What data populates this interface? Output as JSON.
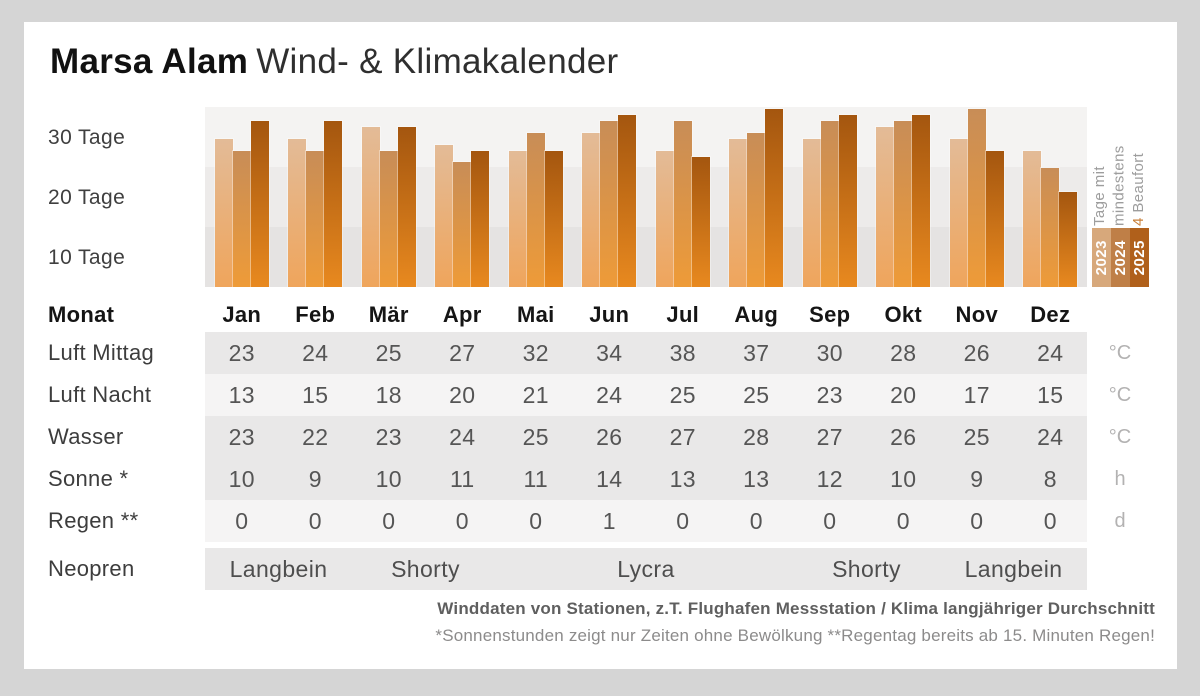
{
  "header": {
    "brand": "Marsa Alam",
    "subtitle": "Wind- & Klimakalender"
  },
  "chart_data": {
    "type": "bar",
    "title": "Tage mit mindestens 4 Beaufort",
    "categories": [
      "Jan",
      "Feb",
      "Mär",
      "Apr",
      "Mai",
      "Jun",
      "Jul",
      "Aug",
      "Sep",
      "Okt",
      "Nov",
      "Dez"
    ],
    "series": [
      {
        "name": "2023",
        "values": [
          25,
          25,
          27,
          24,
          23,
          26,
          23,
          25,
          25,
          27,
          25,
          23
        ]
      },
      {
        "name": "2024",
        "values": [
          23,
          23,
          23,
          21,
          26,
          28,
          28,
          26,
          28,
          28,
          30,
          20
        ]
      },
      {
        "name": "2025",
        "values": [
          28,
          28,
          27,
          23,
          23,
          29,
          22,
          30,
          29,
          29,
          23,
          16
        ]
      }
    ],
    "yticks": [
      {
        "label": "30 Tage",
        "value": 30
      },
      {
        "label": "20 Tage",
        "value": 20
      },
      {
        "label": "10 Tage",
        "value": 10
      }
    ],
    "ylim": [
      0,
      30
    ],
    "grid": "banded",
    "legend_position": "right",
    "legend": {
      "line1": "Tage mit",
      "line2": "mindestens",
      "line3_highlight": "4",
      "line3_rest": " Beaufort"
    }
  },
  "colors": {
    "bar_2023_top": "#e3bb97",
    "bar_2023_bottom": "#efa55c",
    "bar_2024_top": "#c88d57",
    "bar_2024_bottom": "#ee9b38",
    "bar_2025_top": "#a4560f",
    "bar_2025_bottom": "#e8891f",
    "chip_2023": "#d7a87b",
    "chip_2024": "#bf7f47",
    "chip_2025": "#b0601b",
    "accent_orange": "#c97e35"
  },
  "table": {
    "month_header_label": "Monat",
    "months": [
      "Jan",
      "Feb",
      "Mär",
      "Apr",
      "Mai",
      "Jun",
      "Jul",
      "Aug",
      "Sep",
      "Okt",
      "Nov",
      "Dez"
    ],
    "rows": [
      {
        "label": "Luft Mittag",
        "values": [
          "23",
          "24",
          "25",
          "27",
          "32",
          "34",
          "38",
          "37",
          "30",
          "28",
          "26",
          "24"
        ],
        "unit": "°C",
        "shade": "dark"
      },
      {
        "label": "Luft Nacht",
        "values": [
          "13",
          "15",
          "18",
          "20",
          "21",
          "24",
          "25",
          "25",
          "23",
          "20",
          "17",
          "15"
        ],
        "unit": "°C",
        "shade": "light"
      },
      {
        "label": "Wasser",
        "values": [
          "23",
          "22",
          "23",
          "24",
          "25",
          "26",
          "27",
          "28",
          "27",
          "26",
          "25",
          "24"
        ],
        "unit": "°C",
        "shade": "dark"
      },
      {
        "label": "Sonne *",
        "values": [
          "10",
          "9",
          "10",
          "11",
          "11",
          "14",
          "13",
          "13",
          "12",
          "10",
          "9",
          "8"
        ],
        "unit": "h",
        "shade": "dark"
      },
      {
        "label": "Regen **",
        "values": [
          "0",
          "0",
          "0",
          "0",
          "0",
          "1",
          "0",
          "0",
          "0",
          "0",
          "0",
          "0"
        ],
        "unit": "d",
        "shade": "light"
      }
    ],
    "neopren": {
      "label": "Neopren",
      "bands": [
        {
          "label": "Langbein",
          "span": 2
        },
        {
          "label": "Shorty",
          "span": 2
        },
        {
          "label": "Lycra",
          "span": 4
        },
        {
          "label": "Shorty",
          "span": 2
        },
        {
          "label": "Langbein",
          "span": 2
        }
      ]
    }
  },
  "footer": {
    "line1": "Winddaten von Stationen, z.T. Flughafen Messstation / Klima langjähriger Durchschnitt",
    "line2": "*Sonnenstunden zeigt nur Zeiten ohne Bewölkung  **Regentag bereits ab 15. Minuten Regen!"
  }
}
